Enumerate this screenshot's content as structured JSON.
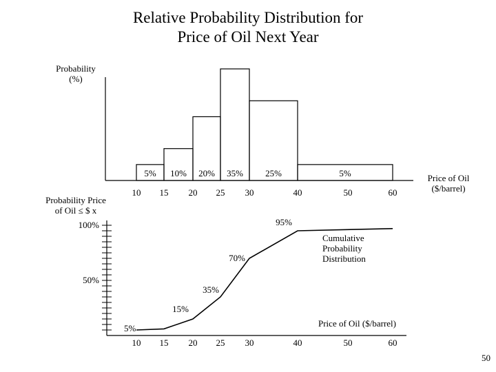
{
  "title_line1": "Relative Probability Distribution for",
  "title_line2": "Price of Oil Next Year",
  "page_number": "50",
  "chart_data": [
    {
      "type": "bar",
      "title": "Relative Probability Distribution for Price of Oil Next Year",
      "ylabel_line1": "Probability",
      "ylabel_line2": "(%)",
      "xlabel_line1": "Price of Oil",
      "xlabel_line2": "($/barrel)",
      "bins": [
        {
          "from": 10,
          "to": 15,
          "value": 5,
          "label": "5%"
        },
        {
          "from": 15,
          "to": 20,
          "value": 10,
          "label": "10%"
        },
        {
          "from": 20,
          "to": 25,
          "value": 20,
          "label": "20%"
        },
        {
          "from": 25,
          "to": 30,
          "value": 35,
          "label": "35%"
        },
        {
          "from": 30,
          "to": 40,
          "value": 25,
          "label": "25%"
        },
        {
          "from": 40,
          "to": 60,
          "value": 5,
          "label": "5%"
        }
      ],
      "xticks": [
        "10",
        "15",
        "20",
        "25",
        "30",
        "40",
        "50",
        "60"
      ],
      "xtick_values": [
        10,
        15,
        20,
        25,
        30,
        40,
        50,
        60
      ]
    },
    {
      "type": "line",
      "title": "Cumulative Probability Distribution",
      "annotation_line1": "Cumulative",
      "annotation_line2": "Probability",
      "annotation_line3": "Distribution",
      "ylabel_line1": "Probability Price",
      "ylabel_line2": "of Oil  ≤  $ x",
      "xlabel": "Price of Oil ($/barrel)",
      "x": [
        10,
        15,
        20,
        25,
        30,
        40,
        60
      ],
      "y": [
        5,
        6,
        15,
        35,
        70,
        95,
        97
      ],
      "point_labels": [
        {
          "x": 10,
          "label": "5%"
        },
        {
          "x": 20,
          "label": "15%"
        },
        {
          "x": 25,
          "label": "35%"
        },
        {
          "x": 30,
          "label": "70%"
        },
        {
          "x": 40,
          "label": "95%"
        }
      ],
      "ytick_labels": [
        {
          "value": 100,
          "label": "100%"
        },
        {
          "value": 50,
          "label": "50%"
        }
      ],
      "ytick_values": [
        100,
        95,
        90,
        85,
        80,
        75,
        70,
        65,
        60,
        55,
        50,
        45,
        40,
        35,
        30,
        25,
        20,
        15,
        10,
        5
      ],
      "ylim": [
        0,
        100
      ],
      "xticks": [
        "10",
        "15",
        "20",
        "25",
        "30",
        "40",
        "50",
        "60"
      ],
      "xtick_values": [
        10,
        15,
        20,
        25,
        30,
        40,
        50,
        60
      ]
    }
  ]
}
